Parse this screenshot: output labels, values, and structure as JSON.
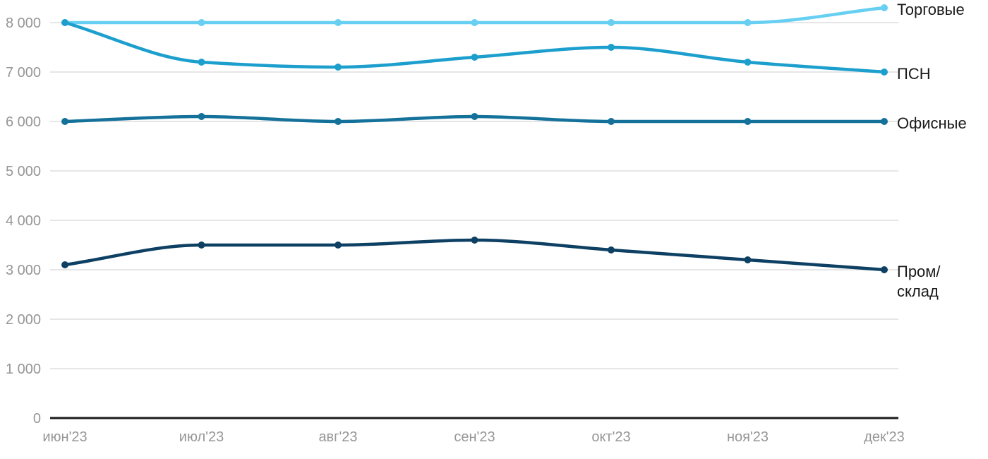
{
  "chart_data": {
    "type": "line",
    "title": "",
    "xlabel": "",
    "ylabel": "",
    "curve": "monotone",
    "grid": "horizontal",
    "legend_position": "right-of-line-ends",
    "x_labels": [
      "июн'23",
      "июл'23",
      "авг'23",
      "сен'23",
      "окт'23",
      "ноя'23",
      "дек'23"
    ],
    "series": [
      {
        "name": "Торговые",
        "legend_label": "Торговые",
        "color": "#66cff2",
        "values": [
          8000,
          8000,
          8000,
          8000,
          8000,
          8000,
          8300
        ]
      },
      {
        "name": "ПСН",
        "legend_label": "ПСН",
        "color": "#1d9fce",
        "values": [
          8000,
          7200,
          7100,
          7300,
          7500,
          7200,
          7000
        ]
      },
      {
        "name": "Офисные",
        "legend_label": "Офисные",
        "color": "#14719a",
        "values": [
          6000,
          6100,
          6000,
          6100,
          6000,
          6000,
          6000
        ]
      },
      {
        "name": "Пром/склад",
        "legend_label": "Пром/\nсклад",
        "color": "#0d4063",
        "values": [
          3100,
          3500,
          3500,
          3600,
          3400,
          3200,
          3000
        ]
      }
    ],
    "y_axis": {
      "ticks": [
        0,
        1000,
        2000,
        3000,
        4000,
        5000,
        6000,
        7000,
        8000
      ],
      "tick_labels": [
        "0",
        "1 000",
        "2 000",
        "3 000",
        "4 000",
        "5 000",
        "6 000",
        "7 000",
        "8 000"
      ],
      "range": [
        0,
        8300
      ]
    }
  },
  "styles": {
    "background": "#ffffff",
    "grid_color": "#e6e6e6",
    "axis_color": "#1a1a1a",
    "tick_label_color": "#969696",
    "legend_text_color": "#1a1a1a"
  }
}
